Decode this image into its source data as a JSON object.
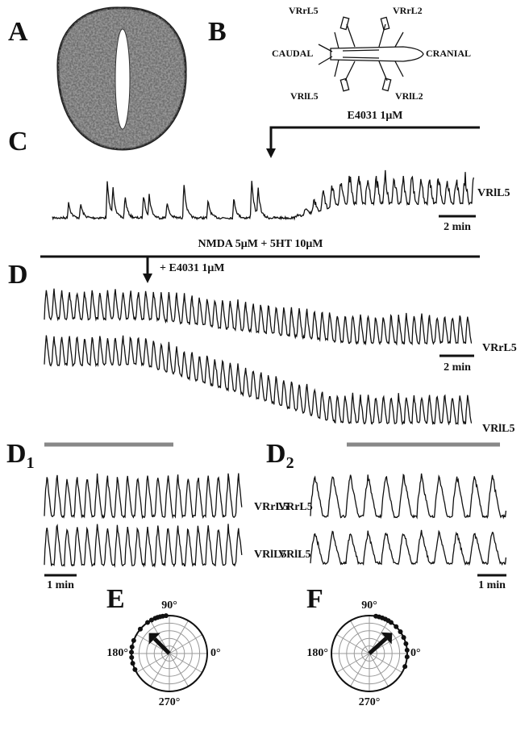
{
  "panel_a": {
    "label": "A"
  },
  "panel_b": {
    "label": "B",
    "vrrl5": "VRrL5",
    "vrrl2": "VRrL2",
    "caudal": "CAUDAL",
    "cranial": "CRANIAL",
    "vrll5": "VRlL5",
    "vrll2": "VRlL2"
  },
  "panel_c": {
    "label": "C",
    "drug": "E4031 1μM",
    "trace": "VRlL5",
    "scale": "2 min"
  },
  "panel_d": {
    "label": "D",
    "bath": "NMDA 5μM + 5HT 10μM",
    "drug": "+ E4031 1μM",
    "traces": [
      "VRrL5",
      "VRlL5"
    ],
    "scale": "2 min"
  },
  "panel_d1": {
    "label": "D",
    "subscript": "1",
    "traces": [
      "VRrL5",
      "VRlL5"
    ],
    "scale": "1 min"
  },
  "panel_d2": {
    "label": "D",
    "subscript": "2",
    "traces": [
      "VRrL5",
      "VRlL5"
    ],
    "scale": "1 min"
  },
  "panel_e": {
    "label": "E",
    "angle_labels": [
      "90°",
      "180°",
      "0°",
      "270°"
    ],
    "points": [
      95,
      100,
      104,
      108,
      112,
      118,
      125,
      140,
      160,
      170,
      178,
      186,
      195,
      205
    ],
    "arrow_angle": 135,
    "arrow_length": 0.55
  },
  "panel_f": {
    "label": "F",
    "angle_labels": [
      "90°",
      "180°",
      "0°",
      "270°"
    ],
    "points": [
      -20,
      -5,
      5,
      15,
      25,
      35,
      45,
      55,
      60,
      65,
      70,
      75,
      80
    ],
    "arrow_angle": 42,
    "arrow_length": 0.6
  }
}
